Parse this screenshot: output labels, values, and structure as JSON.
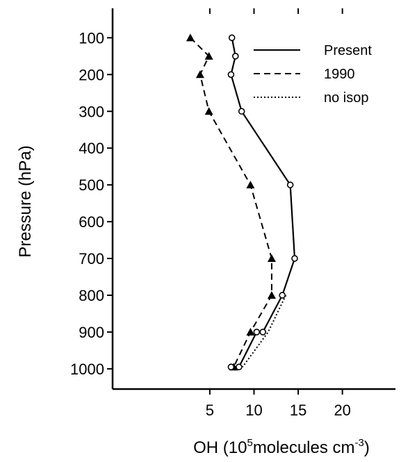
{
  "chart_data": {
    "type": "line",
    "xlabel": {
      "base": "OH (10",
      "sup1": "5",
      "mid": "molecules cm",
      "sup2": "-3",
      "end": ")"
    },
    "ylabel": "Pressure (hPa)",
    "xlim": [
      -6,
      26
    ],
    "ylim": [
      1055,
      20
    ],
    "y_reversed": true,
    "xticks": [
      5,
      10,
      15,
      20
    ],
    "yticks": [
      100,
      200,
      300,
      400,
      500,
      600,
      700,
      800,
      900,
      1000
    ],
    "legend": {
      "position": "top-right"
    },
    "series": [
      {
        "name": "Present",
        "style": "solid",
        "marker": "circle",
        "points": [
          [
            7.5,
            100
          ],
          [
            7.9,
            150
          ],
          [
            7.4,
            200
          ],
          [
            8.6,
            300
          ],
          [
            14.1,
            500
          ],
          [
            14.6,
            700
          ],
          [
            13.2,
            800
          ],
          [
            11.0,
            900
          ],
          [
            10.3,
            900
          ],
          [
            8.3,
            995
          ],
          [
            7.4,
            995
          ]
        ]
      },
      {
        "name": "1990",
        "style": "dashed",
        "marker": "triangle",
        "points": [
          [
            2.8,
            100
          ],
          [
            4.9,
            150
          ],
          [
            3.9,
            200
          ],
          [
            4.9,
            300
          ],
          [
            9.6,
            500
          ],
          [
            12.0,
            700
          ],
          [
            12.0,
            800
          ],
          [
            9.6,
            900
          ],
          [
            7.7,
            995
          ]
        ]
      },
      {
        "name": "no isop",
        "style": "dotted",
        "marker": "none",
        "points": [
          [
            13.6,
            800
          ],
          [
            11.6,
            900
          ],
          [
            8.7,
            995
          ]
        ]
      }
    ]
  }
}
